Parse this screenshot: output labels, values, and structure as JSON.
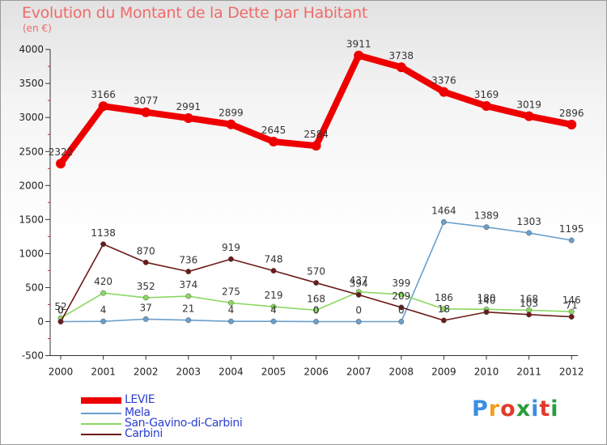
{
  "title": "Evolution du Montant de la Dette par Habitant",
  "subtitle": "(en €)",
  "logo": {
    "letters": [
      "P",
      "r",
      "o",
      "x",
      "i",
      "t",
      "i"
    ],
    "colors": [
      "#3b8ee0",
      "#f0a020",
      "#e23a2a",
      "#2a9d3a",
      "#3b8ee0",
      "#e23a2a",
      "#2a9d3a"
    ]
  },
  "chart_data": {
    "type": "line",
    "title": "Evolution du Montant de la Dette par Habitant",
    "subtitle": "(en €)",
    "x": [
      "2000",
      "2001",
      "2002",
      "2003",
      "2004",
      "2005",
      "2006",
      "2007",
      "2008",
      "2009",
      "2010",
      "2011",
      "2012"
    ],
    "ylim": [
      -500,
      4000
    ],
    "yticks": [
      -500,
      0,
      500,
      1000,
      1500,
      2000,
      2500,
      3000,
      3500,
      4000
    ],
    "grid": false,
    "legend_position": "bottom-left",
    "series": [
      {
        "name": "LEVIE",
        "color": "#ee0000",
        "values": [
          2322,
          3166,
          3077,
          2991,
          2899,
          2645,
          2584,
          3911,
          3738,
          3376,
          3169,
          3019,
          2896
        ],
        "labels": [
          "2322",
          "3166",
          "3077",
          "2991",
          "2899",
          "2645",
          "2584",
          "3911",
          "3738",
          "3376",
          "3169",
          "3019",
          "2896"
        ]
      },
      {
        "name": "Mela",
        "color": "#6a9fcc",
        "values": [
          0,
          4,
          37,
          21,
          4,
          4,
          0,
          0,
          0,
          1464,
          1389,
          1303,
          1195
        ],
        "labels": [
          "0",
          "4",
          "37",
          "21",
          "4",
          "4",
          "0",
          "0",
          "0",
          "1464",
          "1389",
          "1303",
          "1195"
        ]
      },
      {
        "name": "San-Gavino-di-Carbini",
        "color": "#8ad860",
        "values": [
          52,
          420,
          352,
          374,
          275,
          219,
          168,
          437,
          399,
          186,
          180,
          168,
          146
        ],
        "labels": [
          "52",
          "420",
          "352",
          "374",
          "275",
          "219",
          "168",
          "437",
          "399",
          "186",
          "180",
          "168",
          "146"
        ]
      },
      {
        "name": "Carbini",
        "color": "#6b1a1a",
        "values": [
          0,
          1138,
          870,
          736,
          919,
          748,
          570,
          394,
          209,
          18,
          140,
          103,
          71
        ],
        "labels": [
          "0",
          "1138",
          "870",
          "736",
          "919",
          "748",
          "570",
          "394",
          "209",
          "18",
          "140",
          "103",
          "71"
        ]
      }
    ]
  }
}
